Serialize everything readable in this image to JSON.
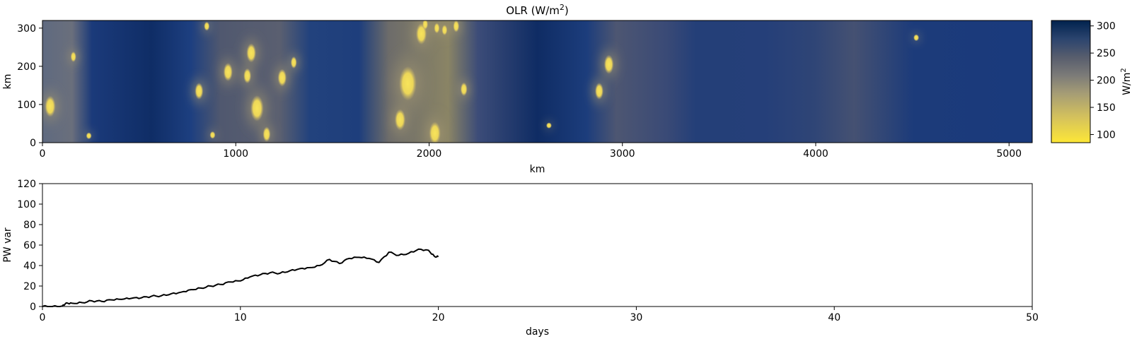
{
  "chart_data": [
    {
      "type": "heatmap",
      "title_main": "OLR (W/m",
      "title_sup": "2",
      "title_end": ")",
      "xlabel": "km",
      "ylabel": "km",
      "xlim": [
        0,
        5120
      ],
      "ylim": [
        0,
        320
      ],
      "xticks": [
        "0",
        "1000",
        "2000",
        "3000",
        "4000",
        "5000"
      ],
      "yticks": [
        "0",
        "100",
        "200",
        "300"
      ],
      "colormap": "cividis",
      "colorbar": {
        "label": "W/m",
        "label_sup": "2",
        "range": [
          85,
          310
        ],
        "ticks": [
          "100",
          "150",
          "200",
          "250",
          "300"
        ],
        "low_color": "#fde737",
        "high_color": "#00224e"
      },
      "bright_cells": [
        {
          "x": 40,
          "y": 95,
          "r": 28
        },
        {
          "x": 160,
          "y": 225,
          "r": 14
        },
        {
          "x": 240,
          "y": 18,
          "r": 9
        },
        {
          "x": 810,
          "y": 135,
          "r": 22
        },
        {
          "x": 850,
          "y": 305,
          "r": 12
        },
        {
          "x": 960,
          "y": 185,
          "r": 24
        },
        {
          "x": 1080,
          "y": 235,
          "r": 25
        },
        {
          "x": 1060,
          "y": 175,
          "r": 20
        },
        {
          "x": 1110,
          "y": 90,
          "r": 34
        },
        {
          "x": 1160,
          "y": 22,
          "r": 20
        },
        {
          "x": 1240,
          "y": 170,
          "r": 23
        },
        {
          "x": 1300,
          "y": 210,
          "r": 16
        },
        {
          "x": 1890,
          "y": 155,
          "r": 45
        },
        {
          "x": 1850,
          "y": 60,
          "r": 28
        },
        {
          "x": 1960,
          "y": 285,
          "r": 28
        },
        {
          "x": 1980,
          "y": 310,
          "r": 14
        },
        {
          "x": 2040,
          "y": 300,
          "r": 14
        },
        {
          "x": 2080,
          "y": 295,
          "r": 14
        },
        {
          "x": 2030,
          "y": 25,
          "r": 30
        },
        {
          "x": 2180,
          "y": 140,
          "r": 18
        },
        {
          "x": 2140,
          "y": 305,
          "r": 16
        },
        {
          "x": 2620,
          "y": 45,
          "r": 8
        },
        {
          "x": 2930,
          "y": 205,
          "r": 25
        },
        {
          "x": 2880,
          "y": 135,
          "r": 22
        },
        {
          "x": 4520,
          "y": 275,
          "r": 9
        },
        {
          "x": 880,
          "y": 20,
          "r": 10
        }
      ]
    },
    {
      "type": "line",
      "xlabel": "days",
      "ylabel": "PW var",
      "xlim": [
        0,
        50
      ],
      "ylim": [
        0,
        120
      ],
      "xticks": [
        "0",
        "10",
        "20",
        "30",
        "40",
        "50"
      ],
      "yticks": [
        "0",
        "20",
        "40",
        "60",
        "80",
        "100",
        "120"
      ],
      "color": "#000000",
      "x": [
        0,
        0.5,
        1.0,
        1.2,
        1.5,
        2.0,
        2.5,
        3.0,
        3.5,
        4.0,
        4.5,
        5.0,
        5.5,
        6.0,
        6.5,
        7.0,
        7.5,
        8.0,
        8.5,
        9.0,
        9.5,
        10.0,
        10.5,
        11.0,
        11.5,
        12.0,
        12.5,
        13.0,
        13.5,
        14.0,
        14.5,
        15.0,
        15.5,
        16.0,
        16.5,
        17.0,
        17.5,
        18.0,
        18.5,
        19.0,
        19.5,
        19.8,
        20.0
      ],
      "y": [
        0,
        0,
        0.5,
        3.5,
        3.2,
        3.8,
        5.5,
        5.0,
        6.5,
        7.0,
        8.0,
        8.5,
        10.0,
        10.5,
        12.5,
        14.0,
        16.5,
        18.0,
        20.0,
        21.5,
        24.0,
        25.0,
        29.0,
        31.0,
        33.0,
        32.5,
        35.0,
        37.0,
        38.0,
        40.0,
        46.0,
        42.0,
        47.0,
        48.0,
        47.0,
        43.0,
        53.0,
        50.0,
        52.0,
        56.0,
        55.0,
        49.0,
        48.5
      ]
    }
  ]
}
